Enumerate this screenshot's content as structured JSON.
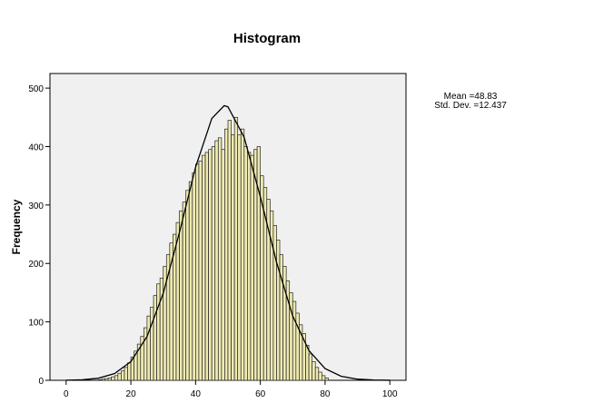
{
  "chart_data": {
    "type": "histogram",
    "title": "Histogram",
    "y_label": "Frequency",
    "stats": [
      "Mean =48.83",
      "Std. Dev. =12.437"
    ],
    "bins": [
      10,
      11,
      12,
      13,
      14,
      15,
      16,
      17,
      18,
      19,
      20,
      21,
      22,
      23,
      24,
      25,
      26,
      27,
      28,
      29,
      30,
      31,
      32,
      33,
      34,
      35,
      36,
      37,
      38,
      39,
      40,
      41,
      42,
      43,
      44,
      45,
      46,
      47,
      48,
      49,
      50,
      51,
      52,
      53,
      54,
      55,
      56,
      57,
      58,
      59,
      60,
      61,
      62,
      63,
      64,
      65,
      66,
      67,
      68,
      69,
      70,
      71,
      72,
      73,
      74,
      75,
      76,
      77,
      78,
      79,
      80,
      81
    ],
    "values": [
      1,
      2,
      3,
      4,
      6,
      8,
      12,
      16,
      22,
      30,
      40,
      50,
      62,
      75,
      90,
      110,
      125,
      145,
      165,
      175,
      195,
      215,
      235,
      250,
      270,
      290,
      305,
      325,
      340,
      355,
      370,
      375,
      385,
      390,
      395,
      400,
      410,
      415,
      395,
      430,
      445,
      420,
      450,
      420,
      430,
      400,
      390,
      385,
      395,
      400,
      350,
      330,
      310,
      290,
      265,
      240,
      215,
      195,
      170,
      150,
      135,
      115,
      95,
      80,
      60,
      45,
      32,
      22,
      14,
      8,
      4
    ],
    "color": "#eeeab2",
    "normal_curve": {
      "x": [
        0,
        5,
        10,
        15,
        20,
        25,
        30,
        35,
        40,
        45,
        48.83,
        50,
        55,
        60,
        65,
        70,
        75,
        80,
        85,
        90,
        95,
        100
      ],
      "values": [
        0.2,
        0.9,
        3.6,
        11.6,
        32,
        75,
        149,
        253,
        365,
        448,
        470,
        468,
        416,
        314,
        202,
        110,
        51,
        20,
        6.8,
        2,
        0.5,
        0.1
      ]
    },
    "xlim": [
      -5,
      105
    ],
    "ylim": [
      0,
      525
    ],
    "xticks": [
      0,
      20,
      40,
      60,
      80,
      100
    ],
    "yticks": [
      0,
      100,
      200,
      300,
      400,
      500
    ]
  }
}
